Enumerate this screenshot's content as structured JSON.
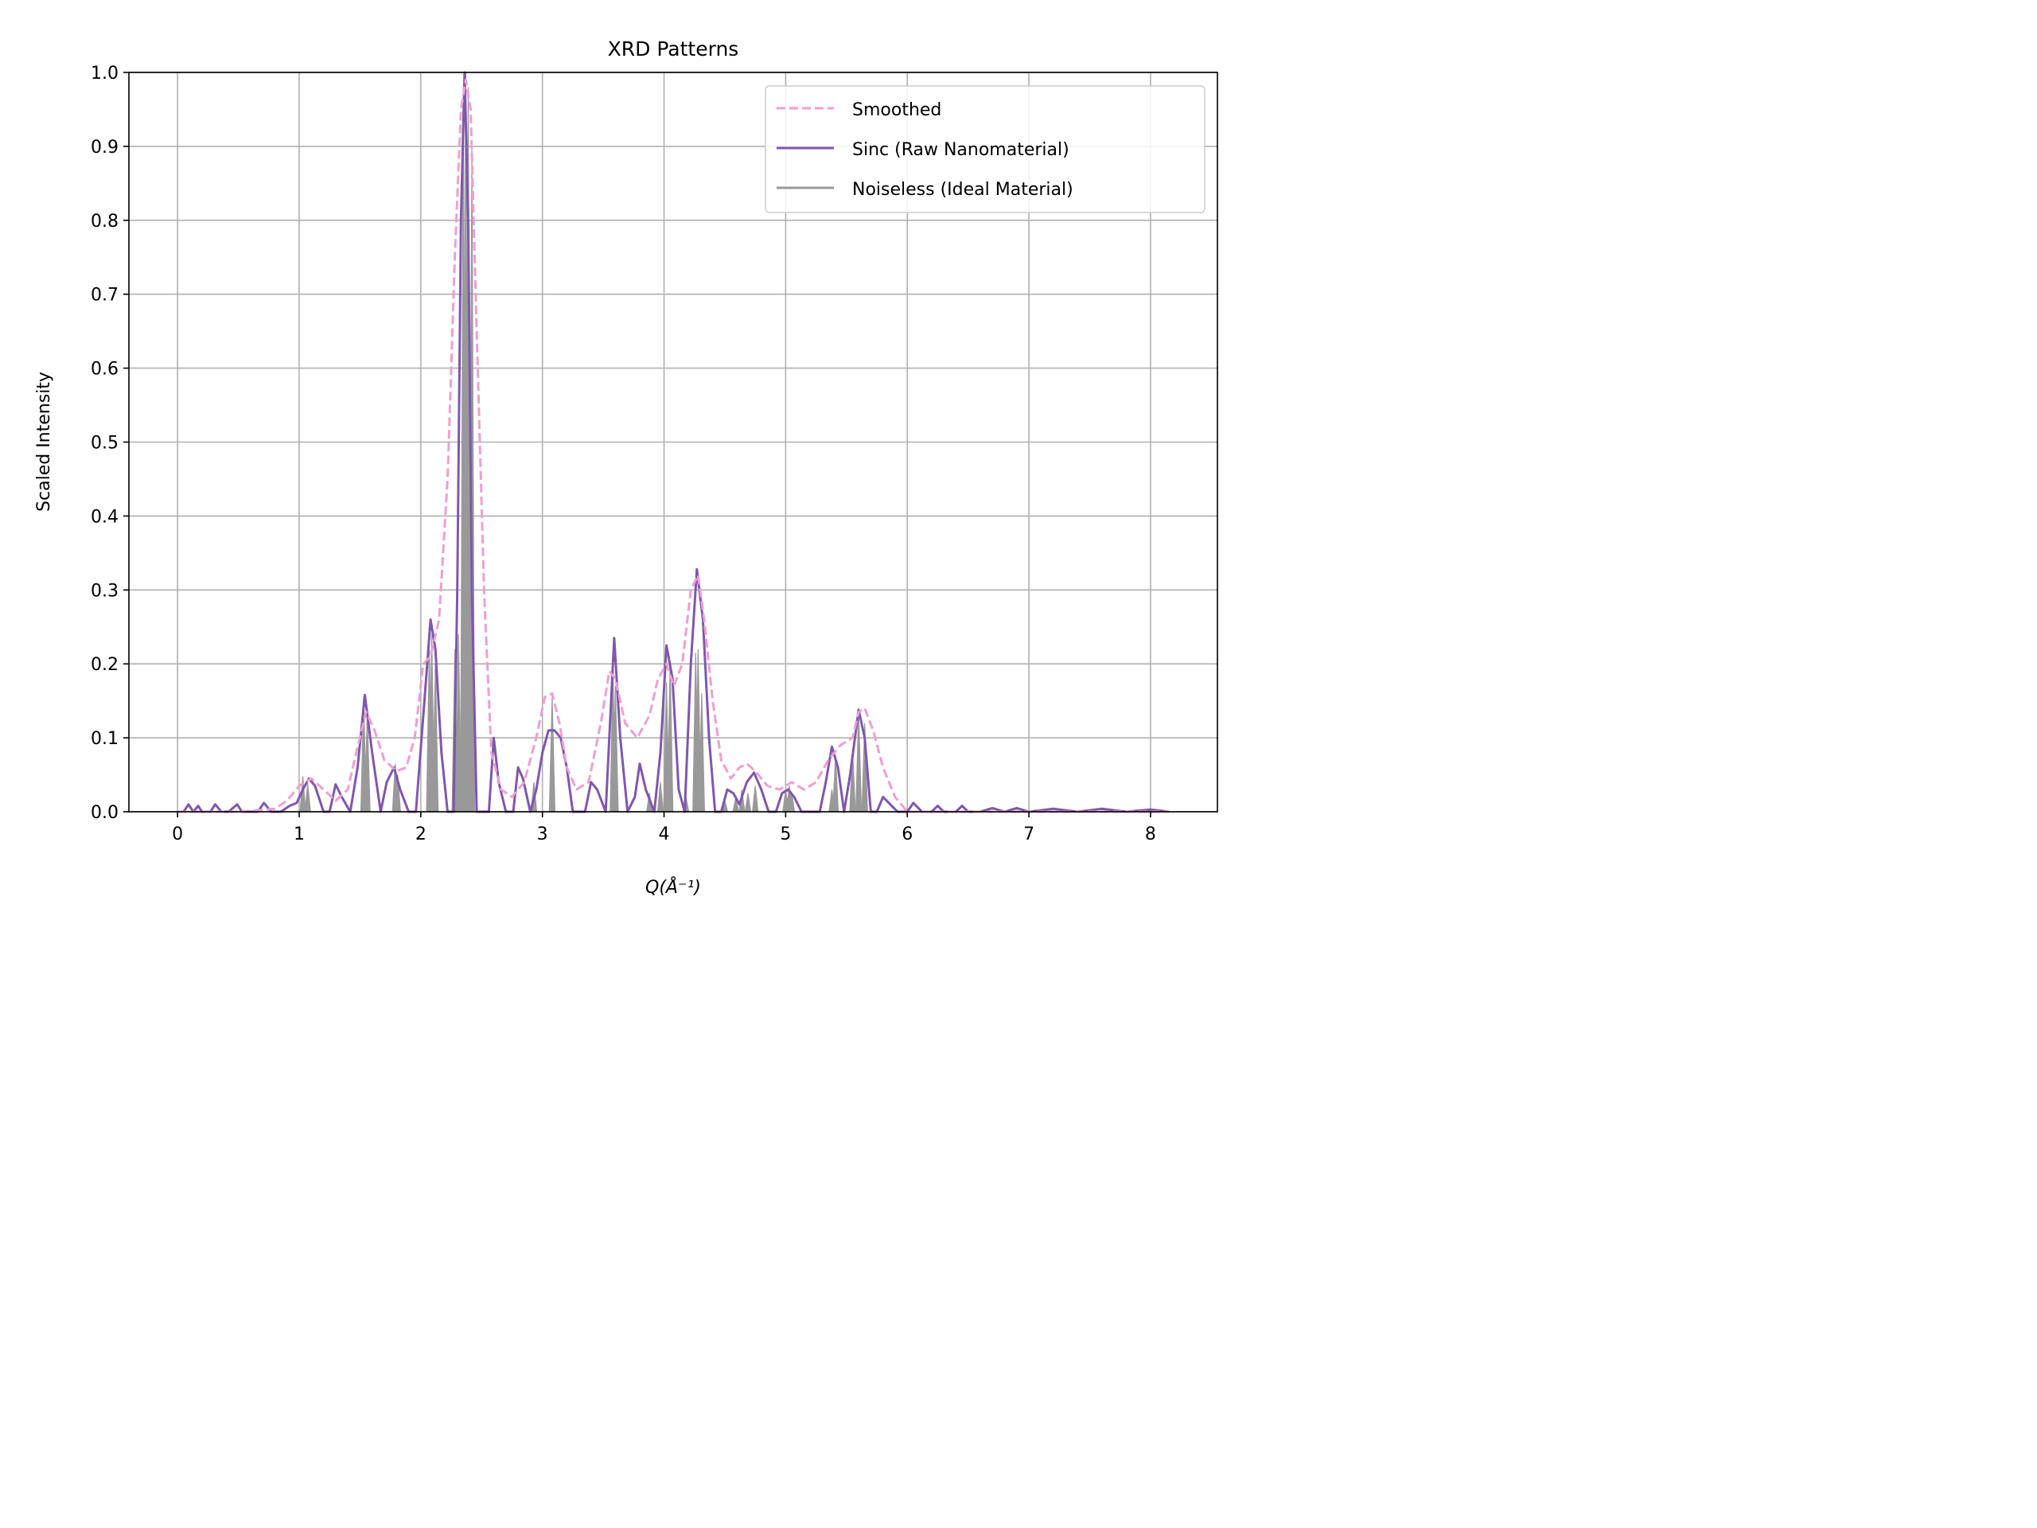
{
  "chart_data": {
    "type": "line",
    "title": "XRD Patterns",
    "xlabel": "Q(Å⁻¹)",
    "ylabel": "Scaled Intensity",
    "xlim": [
      -0.4,
      8.55
    ],
    "ylim": [
      0.0,
      1.0
    ],
    "xticks": [
      0,
      1,
      2,
      3,
      4,
      5,
      6,
      7,
      8
    ],
    "yticks": [
      0.0,
      0.1,
      0.2,
      0.3,
      0.4,
      0.5,
      0.6,
      0.7,
      0.8,
      0.9,
      1.0
    ],
    "xtick_labels": [
      "0",
      "1",
      "2",
      "3",
      "4",
      "5",
      "6",
      "7",
      "8"
    ],
    "ytick_labels": [
      "0.0",
      "0.1",
      "0.2",
      "0.3",
      "0.4",
      "0.5",
      "0.6",
      "0.7",
      "0.8",
      "0.9",
      "1.0"
    ],
    "grid": true,
    "legend_position": "top-right",
    "series": [
      {
        "name": "Smoothed",
        "style": "dashed",
        "color": "#ee9fcf",
        "x": [
          0,
          0.5,
          0.8,
          0.9,
          1.0,
          1.1,
          1.2,
          1.3,
          1.4,
          1.47,
          1.55,
          1.62,
          1.7,
          1.8,
          1.88,
          1.95,
          2.02,
          2.08,
          2.15,
          2.22,
          2.28,
          2.33,
          2.37,
          2.41,
          2.46,
          2.52,
          2.58,
          2.66,
          2.75,
          2.85,
          2.95,
          3.02,
          3.08,
          3.14,
          3.2,
          3.28,
          3.38,
          3.48,
          3.55,
          3.6,
          3.68,
          3.78,
          3.88,
          3.95,
          4.02,
          4.08,
          4.15,
          4.22,
          4.28,
          4.33,
          4.4,
          4.47,
          4.55,
          4.62,
          4.68,
          4.75,
          4.85,
          4.95,
          5.05,
          5.15,
          5.25,
          5.35,
          5.45,
          5.55,
          5.6,
          5.65,
          5.72,
          5.8,
          5.9,
          6.0,
          6.5,
          7.0,
          7.5,
          8.15
        ],
        "y": [
          0.0,
          0.0,
          0.004,
          0.015,
          0.035,
          0.045,
          0.03,
          0.015,
          0.03,
          0.08,
          0.135,
          0.11,
          0.07,
          0.055,
          0.06,
          0.1,
          0.2,
          0.21,
          0.26,
          0.45,
          0.75,
          0.95,
          0.99,
          0.95,
          0.65,
          0.3,
          0.08,
          0.03,
          0.02,
          0.04,
          0.1,
          0.155,
          0.16,
          0.12,
          0.06,
          0.03,
          0.04,
          0.12,
          0.19,
          0.18,
          0.12,
          0.1,
          0.13,
          0.18,
          0.2,
          0.17,
          0.2,
          0.3,
          0.32,
          0.26,
          0.15,
          0.07,
          0.045,
          0.06,
          0.065,
          0.055,
          0.035,
          0.03,
          0.04,
          0.03,
          0.04,
          0.07,
          0.09,
          0.1,
          0.135,
          0.14,
          0.11,
          0.06,
          0.02,
          0.0,
          0.0,
          0.0,
          0.0,
          0.0
        ]
      },
      {
        "name": "Sinc (Raw Nanomaterial)",
        "style": "solid",
        "color": "#7f57ad",
        "x": [
          0,
          0.05,
          0.09,
          0.13,
          0.17,
          0.2,
          0.27,
          0.31,
          0.36,
          0.42,
          0.49,
          0.53,
          0.58,
          0.66,
          0.71,
          0.77,
          0.85,
          0.92,
          0.98,
          1.03,
          1.08,
          1.13,
          1.2,
          1.25,
          1.3,
          1.35,
          1.42,
          1.48,
          1.54,
          1.6,
          1.67,
          1.72,
          1.78,
          1.83,
          1.9,
          1.96,
          2.03,
          2.08,
          2.12,
          2.17,
          2.22,
          2.27,
          2.3,
          2.33,
          2.36,
          2.39,
          2.42,
          2.46,
          2.52,
          2.56,
          2.6,
          2.64,
          2.7,
          2.76,
          2.8,
          2.84,
          2.9,
          2.95,
          3.0,
          3.05,
          3.1,
          3.15,
          3.2,
          3.25,
          3.3,
          3.35,
          3.4,
          3.45,
          3.52,
          3.59,
          3.64,
          3.7,
          3.76,
          3.8,
          3.85,
          3.92,
          3.97,
          4.02,
          4.07,
          4.12,
          4.17,
          4.22,
          4.27,
          4.32,
          4.37,
          4.42,
          4.47,
          4.52,
          4.57,
          4.62,
          4.68,
          4.74,
          4.8,
          4.86,
          4.92,
          4.97,
          5.02,
          5.07,
          5.13,
          5.2,
          5.28,
          5.33,
          5.38,
          5.43,
          5.48,
          5.53,
          5.6,
          5.65,
          5.7,
          5.75,
          5.8,
          5.86,
          5.92,
          6.0,
          6.05,
          6.12,
          6.2,
          6.25,
          6.3,
          6.4,
          6.45,
          6.5,
          6.6,
          6.7,
          6.8,
          6.9,
          7.0,
          7.2,
          7.4,
          7.6,
          7.8,
          8.0,
          8.15
        ],
        "y": [
          0.0,
          0.0,
          0.01,
          0.0,
          0.008,
          0.0,
          0.0,
          0.01,
          0.0,
          0.0,
          0.01,
          0.0,
          0.0,
          0.0,
          0.012,
          0.0,
          0.0,
          0.008,
          0.012,
          0.03,
          0.045,
          0.035,
          0.0,
          0.0,
          0.037,
          0.02,
          0.0,
          0.06,
          0.158,
          0.08,
          0.0,
          0.04,
          0.06,
          0.03,
          0.0,
          0.0,
          0.15,
          0.26,
          0.22,
          0.08,
          0.0,
          0.0,
          0.3,
          0.8,
          1.0,
          0.8,
          0.3,
          0.0,
          0.0,
          0.0,
          0.1,
          0.04,
          0.0,
          0.0,
          0.06,
          0.045,
          0.0,
          0.03,
          0.08,
          0.11,
          0.11,
          0.1,
          0.06,
          0.0,
          0.0,
          0.0,
          0.04,
          0.03,
          0.0,
          0.235,
          0.1,
          0.0,
          0.02,
          0.065,
          0.03,
          0.0,
          0.08,
          0.225,
          0.18,
          0.03,
          0.0,
          0.2,
          0.328,
          0.26,
          0.1,
          0.0,
          0.0,
          0.03,
          0.025,
          0.01,
          0.04,
          0.053,
          0.03,
          0.0,
          0.0,
          0.025,
          0.03,
          0.02,
          0.0,
          0.0,
          0.0,
          0.04,
          0.088,
          0.06,
          0.0,
          0.05,
          0.138,
          0.1,
          0.0,
          0.0,
          0.02,
          0.01,
          0.0,
          0.0,
          0.012,
          0.0,
          0.0,
          0.008,
          0.0,
          0.0,
          0.008,
          0.0,
          0.0,
          0.005,
          0.0,
          0.005,
          0.0,
          0.004,
          0.0,
          0.004,
          0.0,
          0.003,
          0.0
        ]
      },
      {
        "name": "Noiseless (Ideal Material)",
        "style": "solid",
        "color": "#999999",
        "x": [
          1.03,
          1.07,
          1.53,
          1.56,
          1.79,
          1.81,
          2.07,
          2.09,
          2.12,
          2.28,
          2.31,
          2.35,
          2.37,
          2.39,
          2.42,
          2.93,
          3.08,
          3.58,
          3.6,
          3.88,
          3.97,
          4.02,
          4.05,
          4.18,
          4.26,
          4.28,
          4.31,
          4.5,
          4.59,
          4.64,
          4.69,
          4.75,
          5.0,
          5.03,
          5.05,
          5.38,
          5.41,
          5.55,
          5.6,
          5.65
        ],
        "y": [
          0.048,
          0.038,
          0.155,
          0.13,
          0.065,
          0.05,
          0.22,
          0.24,
          0.2,
          0.22,
          0.24,
          0.98,
          1.0,
          0.98,
          0.9,
          0.04,
          0.155,
          0.19,
          0.17,
          0.025,
          0.04,
          0.175,
          0.2,
          0.02,
          0.215,
          0.22,
          0.16,
          0.015,
          0.02,
          0.03,
          0.025,
          0.035,
          0.03,
          0.035,
          0.025,
          0.03,
          0.075,
          0.085,
          0.135,
          0.12
        ]
      }
    ]
  }
}
